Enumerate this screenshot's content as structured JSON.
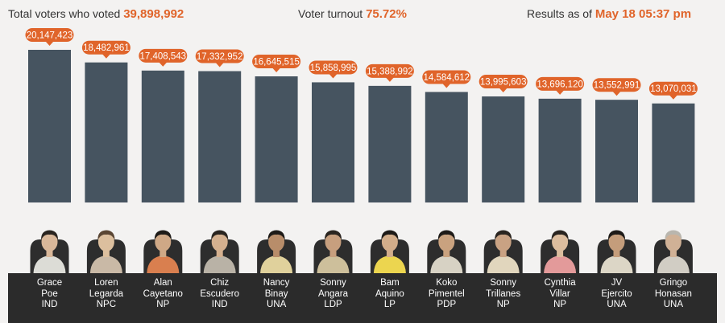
{
  "header": {
    "total_label": "Total voters who voted",
    "total_value": "39,898,992",
    "turnout_label": "Voter turnout",
    "turnout_value": "75.72%",
    "results_label": "Results as of",
    "results_value": "May 18 05:37 pm"
  },
  "colors": {
    "bar": "#465460",
    "badge": "#e0642a",
    "label_bg": "#2b2b2b",
    "background": "#f3f2f1"
  },
  "chart_data": {
    "type": "bar",
    "categories": [
      "Grace Poe",
      "Loren Legarda",
      "Alan Cayetano",
      "Chiz Escudero",
      "Nancy Binay",
      "Sonny Angara",
      "Bam Aquino",
      "Koko Pimentel",
      "Sonny Trillanes",
      "Cynthia Villar",
      "JV Ejercito",
      "Gringo Honasan"
    ],
    "values": [
      20147423,
      18482961,
      17408543,
      17332952,
      16645515,
      15858995,
      15388992,
      14584612,
      13995603,
      13696120,
      13552991,
      13070031
    ],
    "value_labels": [
      "20,147,423",
      "18,482,961",
      "17,408,543",
      "17,332,952",
      "16,645,515",
      "15,858,995",
      "15,388,992",
      "14,584,612",
      "13,995,603",
      "13,696,120",
      "13,552,991",
      "13,070,031"
    ],
    "ylim": [
      0,
      20147423
    ],
    "grid": false,
    "legend": "none"
  },
  "candidates": [
    {
      "first": "Grace",
      "last": "Poe",
      "party": "IND",
      "shirt": "#dcdcd6",
      "skin": "#d9b89a",
      "hair": "#2a2520"
    },
    {
      "first": "Loren",
      "last": "Legarda",
      "party": "NPC",
      "shirt": "#c9b9a6",
      "skin": "#dcbf9e",
      "hair": "#5a4634"
    },
    {
      "first": "Alan",
      "last": "Cayetano",
      "party": "NP",
      "shirt": "#d97f4f",
      "skin": "#cfa886",
      "hair": "#1e1b18"
    },
    {
      "first": "Chiz",
      "last": "Escudero",
      "party": "IND",
      "shirt": "#b9b2a6",
      "skin": "#d4b08f",
      "hair": "#2a2520"
    },
    {
      "first": "Nancy",
      "last": "Binay",
      "party": "UNA",
      "shirt": "#e0d19c",
      "skin": "#b88d6a",
      "hair": "#1e1b18"
    },
    {
      "first": "Sonny",
      "last": "Angara",
      "party": "LDP",
      "shirt": "#cdbf9b",
      "skin": "#c79f7e",
      "hair": "#2a2520"
    },
    {
      "first": "Bam",
      "last": "Aquino",
      "party": "LP",
      "shirt": "#ecd54f",
      "skin": "#d2ad8a",
      "hair": "#1e1b18"
    },
    {
      "first": "Koko",
      "last": "Pimentel",
      "party": "PDP",
      "shirt": "#d7d2c4",
      "skin": "#c9a27f",
      "hair": "#1e1b18"
    },
    {
      "first": "Sonny",
      "last": "Trillanes",
      "party": "NP",
      "shirt": "#e1d6bd",
      "skin": "#c9a283",
      "hair": "#2a2520"
    },
    {
      "first": "Cynthia",
      "last": "Villar",
      "party": "NP",
      "shirt": "#e39a9a",
      "skin": "#dcbd9e",
      "hair": "#2a2520"
    },
    {
      "first": "JV",
      "last": "Ejercito",
      "party": "UNA",
      "shirt": "#dcd6c6",
      "skin": "#c49d7b",
      "hair": "#1e1b18"
    },
    {
      "first": "Gringo",
      "last": "Honasan",
      "party": "UNA",
      "shirt": "#d1cdc4",
      "skin": "#d0b196",
      "hair": "#b9b6ae"
    }
  ]
}
